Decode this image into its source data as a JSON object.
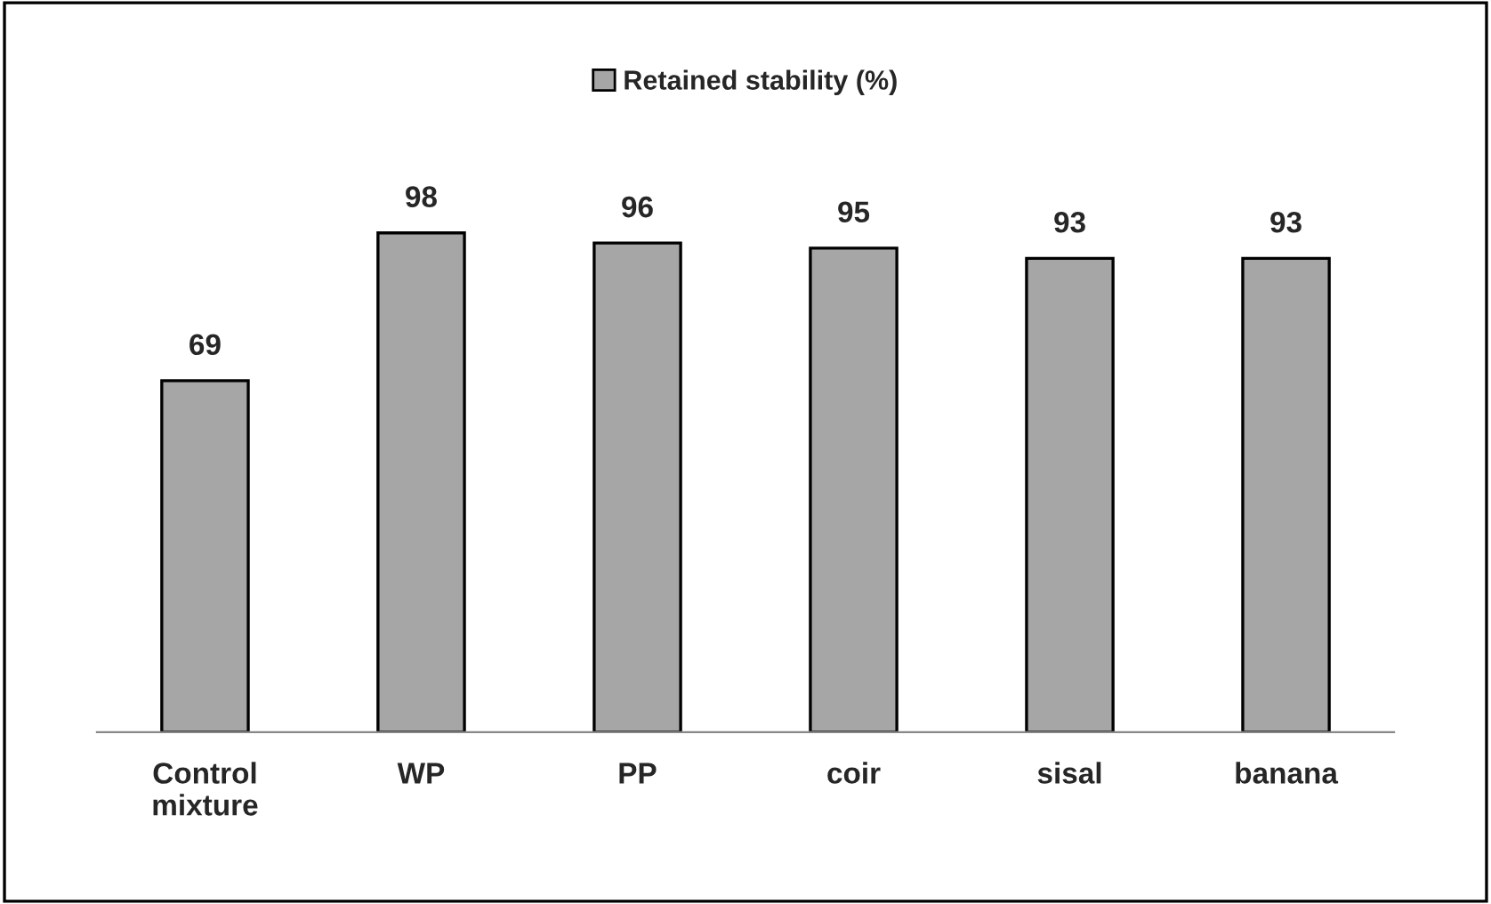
{
  "chart_data": {
    "type": "bar",
    "categories": [
      "Control\nmixture",
      "WP",
      "PP",
      "coir",
      "sisal",
      "banana"
    ],
    "series": [
      {
        "name": "Retained stability (%)",
        "color": "#a6a6a6",
        "values": [
          69,
          98,
          96,
          95,
          93,
          93
        ]
      }
    ],
    "data_labels": true,
    "legend": "top",
    "grid": false,
    "tick_labels": "x"
  }
}
